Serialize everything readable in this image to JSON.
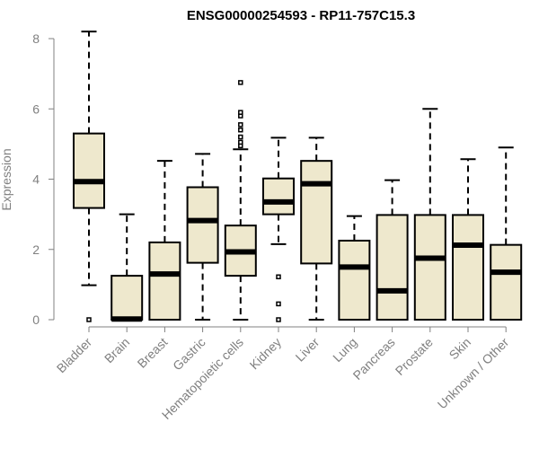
{
  "chart_data": {
    "type": "boxplot",
    "title": "ENSG00000254593 - RP11-757C15.3",
    "ylabel": "Expression",
    "xlabel": "",
    "ylim": [
      0,
      8
    ],
    "yticks": [
      0,
      2,
      4,
      6,
      8
    ],
    "box_fill": "#EEE8CD",
    "categories": [
      "Bladder",
      "Brain",
      "Breast",
      "Gastric",
      "Hematopoietic cells",
      "Kidney",
      "Liver",
      "Lung",
      "Pancreas",
      "Prostate",
      "Skin",
      "Unknown / Other"
    ],
    "boxes": [
      {
        "min": 0.98,
        "q1": 3.18,
        "median": 3.93,
        "q3": 5.3,
        "max": 8.2,
        "outliers": [
          0.0
        ]
      },
      {
        "min": 0.0,
        "q1": 0.0,
        "median": 0.02,
        "q3": 1.25,
        "max": 3.0,
        "outliers": []
      },
      {
        "min": 0.0,
        "q1": 0.0,
        "median": 1.3,
        "q3": 2.2,
        "max": 4.52,
        "outliers": []
      },
      {
        "min": 0.0,
        "q1": 1.62,
        "median": 2.82,
        "q3": 3.77,
        "max": 4.72,
        "outliers": []
      },
      {
        "min": 0.0,
        "q1": 1.25,
        "median": 1.93,
        "q3": 2.68,
        "max": 4.85,
        "outliers": [
          4.95,
          5.05,
          5.2,
          5.4,
          5.55,
          5.8,
          5.9,
          6.75
        ]
      },
      {
        "min": 2.15,
        "q1": 3.0,
        "median": 3.35,
        "q3": 4.02,
        "max": 5.18,
        "outliers": [
          1.22,
          0.45,
          0.0
        ]
      },
      {
        "min": 0.0,
        "q1": 1.6,
        "median": 3.87,
        "q3": 4.52,
        "max": 5.18,
        "outliers": []
      },
      {
        "min": 0.0,
        "q1": 0.0,
        "median": 1.5,
        "q3": 2.25,
        "max": 2.95,
        "outliers": []
      },
      {
        "min": 0.0,
        "q1": 0.0,
        "median": 0.82,
        "q3": 2.98,
        "max": 3.97,
        "outliers": []
      },
      {
        "min": 0.0,
        "q1": 0.0,
        "median": 1.75,
        "q3": 2.98,
        "max": 6.0,
        "outliers": []
      },
      {
        "min": 0.0,
        "q1": 0.0,
        "median": 2.12,
        "q3": 2.98,
        "max": 4.57,
        "outliers": []
      },
      {
        "min": 0.0,
        "q1": 0.0,
        "median": 1.35,
        "q3": 2.13,
        "max": 4.9,
        "outliers": []
      }
    ]
  }
}
